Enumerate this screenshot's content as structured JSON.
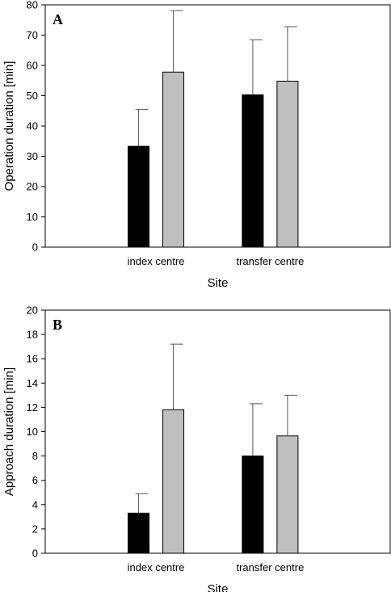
{
  "chart_data": [
    {
      "type": "bar",
      "panel_label": "A",
      "categories": [
        "index centre",
        "transfer centre"
      ],
      "series": [
        {
          "color": "#000000",
          "values": [
            33.3,
            50.3
          ],
          "error": [
            12.2,
            18.2
          ]
        },
        {
          "color": "#bfbfbf",
          "values": [
            57.8,
            54.8
          ],
          "error": [
            20.3,
            18.0
          ]
        }
      ],
      "xlabel": "Site",
      "ylabel": "Operation duration [min]",
      "ylim": [
        0,
        80
      ],
      "yticks": [
        0,
        10,
        20,
        30,
        40,
        50,
        60,
        70,
        80
      ],
      "grid": false,
      "legend": false
    },
    {
      "type": "bar",
      "panel_label": "B",
      "categories": [
        "index centre",
        "transfer centre"
      ],
      "series": [
        {
          "color": "#000000",
          "values": [
            3.3,
            8.0
          ],
          "error": [
            1.6,
            4.3
          ]
        },
        {
          "color": "#bfbfbf",
          "values": [
            11.8,
            9.65
          ],
          "error": [
            5.4,
            3.35
          ]
        }
      ],
      "xlabel": "Site",
      "ylabel": "Approach duration [min]",
      "ylim": [
        0,
        20
      ],
      "yticks": [
        0,
        2,
        4,
        6,
        8,
        10,
        12,
        14,
        16,
        18,
        20
      ],
      "grid": false,
      "legend": false
    }
  ]
}
